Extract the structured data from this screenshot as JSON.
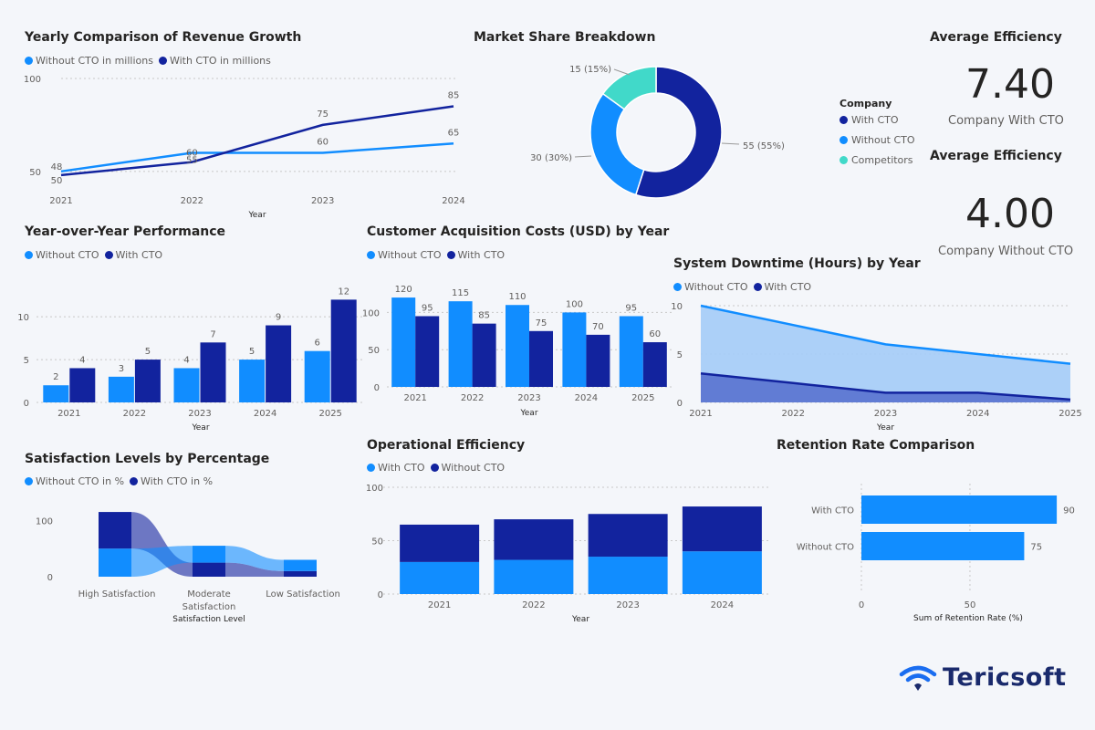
{
  "colors": {
    "light": "#118dff",
    "dark": "#12239e",
    "teal": "#41d9c9",
    "area_light": "#a8cdf8",
    "area_dark": "#5d77d2"
  },
  "charts": {
    "revenue": {
      "title": "Yearly Comparison of Revenue Growth",
      "legend": [
        "Without CTO in millions",
        "With CTO in millions"
      ],
      "xlabel": "Year"
    },
    "market": {
      "title": "Market Share Breakdown",
      "legend_title": "Company"
    },
    "yoy": {
      "title": "Year-over-Year Performance",
      "legend": [
        "Without CTO",
        "With CTO"
      ],
      "xlabel": "Year"
    },
    "cac": {
      "title": "Customer Acquisition Costs (USD) by Year",
      "legend": [
        "Without CTO",
        "With CTO"
      ],
      "xlabel": "Year"
    },
    "downtime": {
      "title": "System Downtime (Hours) by Year",
      "legend": [
        "Without CTO",
        "With CTO"
      ],
      "xlabel": "Year"
    },
    "satisfaction": {
      "title": "Satisfaction Levels by Percentage",
      "legend": [
        "Without CTO in %",
        "With CTO in %"
      ],
      "xlabel": "Satisfaction Level"
    },
    "operational": {
      "title": "Operational Efficiency",
      "legend": [
        "With CTO",
        "Without CTO"
      ],
      "xlabel": "Year"
    },
    "retention": {
      "title": "Retention Rate Comparison",
      "xlabel": "Sum of Retention Rate (%)"
    }
  },
  "kpis": [
    {
      "title": "Average Efficiency",
      "value": "7.40",
      "label": "Company With CTO"
    },
    {
      "title": "Average Efficiency",
      "value": "4.00",
      "label": "Company Without CTO"
    }
  ],
  "brand": {
    "name": "Tericsoft"
  },
  "chart_data": [
    {
      "id": "revenue",
      "type": "line",
      "title": "Yearly Comparison of Revenue Growth",
      "xlabel": "Year",
      "ylabel": "",
      "x": [
        "2021",
        "2022",
        "2023",
        "2024"
      ],
      "ylim": [
        45,
        100
      ],
      "yticks": [
        50,
        100
      ],
      "series": [
        {
          "name": "Without CTO in millions",
          "values": [
            50,
            60,
            60,
            65
          ]
        },
        {
          "name": "With CTO in millions",
          "values": [
            48,
            55,
            75,
            85
          ]
        }
      ]
    },
    {
      "id": "market",
      "type": "pie",
      "title": "Market Share Breakdown",
      "legend_title": "Company",
      "categories": [
        "With CTO",
        "Without CTO",
        "Competitors"
      ],
      "values": [
        55,
        30,
        15
      ],
      "labels": [
        "55 (55%)",
        "30 (30%)",
        "15 (15%)"
      ]
    },
    {
      "id": "yoy",
      "type": "bar",
      "title": "Year-over-Year Performance",
      "xlabel": "Year",
      "categories": [
        "2021",
        "2022",
        "2023",
        "2024",
        "2025"
      ],
      "ylim": [
        0,
        13
      ],
      "yticks": [
        0,
        5,
        10
      ],
      "series": [
        {
          "name": "Without CTO",
          "values": [
            2,
            3,
            4,
            5,
            6
          ]
        },
        {
          "name": "With CTO",
          "values": [
            4,
            5,
            7,
            9,
            12
          ]
        }
      ]
    },
    {
      "id": "cac",
      "type": "bar",
      "title": "Customer Acquisition Costs (USD) by Year",
      "xlabel": "Year",
      "categories": [
        "2021",
        "2022",
        "2023",
        "2024",
        "2025"
      ],
      "ylim": [
        0,
        125
      ],
      "yticks": [
        0,
        50,
        100
      ],
      "series": [
        {
          "name": "Without CTO",
          "values": [
            120,
            115,
            110,
            100,
            95
          ]
        },
        {
          "name": "With CTO",
          "values": [
            95,
            85,
            75,
            70,
            60
          ]
        }
      ]
    },
    {
      "id": "downtime",
      "type": "area",
      "title": "System Downtime (Hours) by Year",
      "xlabel": "Year",
      "x": [
        "2021",
        "2022",
        "2023",
        "2024",
        "2025"
      ],
      "ylim": [
        0,
        10
      ],
      "yticks": [
        0,
        5,
        10
      ],
      "series": [
        {
          "name": "Without CTO",
          "values": [
            10,
            8,
            6,
            5,
            4
          ]
        },
        {
          "name": "With CTO",
          "values": [
            3,
            2,
            1,
            1,
            0.3
          ]
        }
      ]
    },
    {
      "id": "satisfaction",
      "type": "ribbon",
      "title": "Satisfaction Levels by Percentage",
      "xlabel": "Satisfaction Level",
      "categories": [
        "High Satisfaction",
        "Moderate Satisfaction",
        "Low Satisfaction"
      ],
      "ylim": [
        0,
        120
      ],
      "yticks": [
        0,
        100
      ],
      "series": [
        {
          "name": "Without CTO in %",
          "values": [
            50,
            30,
            20
          ]
        },
        {
          "name": "With CTO in %",
          "values": [
            65,
            25,
            10
          ]
        }
      ]
    },
    {
      "id": "operational",
      "type": "bar",
      "stacked": true,
      "title": "Operational Efficiency",
      "xlabel": "Year",
      "categories": [
        "2021",
        "2022",
        "2023",
        "2024"
      ],
      "ylim": [
        0,
        100
      ],
      "yticks": [
        0,
        50,
        100
      ],
      "series": [
        {
          "name": "With CTO",
          "values": [
            30,
            32,
            35,
            40
          ]
        },
        {
          "name": "Without CTO",
          "values": [
            35,
            38,
            40,
            42
          ]
        }
      ]
    },
    {
      "id": "retention",
      "type": "bar",
      "orientation": "horizontal",
      "title": "Retention Rate Comparison",
      "xlabel": "Sum of Retention Rate (%)",
      "categories": [
        "With CTO",
        "Without CTO"
      ],
      "values": [
        90,
        75
      ],
      "xlim": [
        0,
        95
      ],
      "xticks": [
        0,
        50
      ]
    }
  ]
}
